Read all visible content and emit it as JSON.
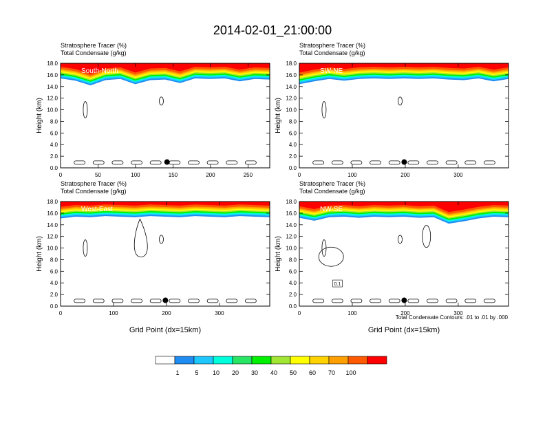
{
  "main_title": "2014-02-01_21:00:00",
  "contour_note": "Total Condensate Contours: .01 to .01 by .000",
  "colorbar": {
    "colors": [
      "#ffffff",
      "#1e8cf0",
      "#1ec8ff",
      "#00ffdc",
      "#28e664",
      "#00f000",
      "#a0e632",
      "#ffff00",
      "#ffd200",
      "#ffa000",
      "#ff5a00",
      "#ff0000"
    ],
    "labels": [
      "1",
      "5",
      "10",
      "20",
      "30",
      "40",
      "50",
      "60",
      "70",
      "100"
    ]
  },
  "chart_data": [
    {
      "type": "heatmap",
      "line1": "Stratosphere Tracer   (%)",
      "line2": "Total Condensate   (g/kg)",
      "inset_label": "South-North",
      "ylabel": "Height (km)",
      "xlabel": "",
      "xlim": [
        0,
        279
      ],
      "ylim": [
        0,
        18
      ],
      "xticks": [
        0,
        50,
        100,
        150,
        200,
        250
      ],
      "yticks": [
        "0.0",
        "2.0",
        "4.0",
        "6.0",
        "8.0",
        "10.0",
        "12.0",
        "14.0",
        "16.0",
        "18.0"
      ],
      "tracer_band_bottom_km": [
        15.4,
        15.0,
        14.2,
        15.1,
        15.3,
        14.4,
        15.1,
        15.2,
        14.6,
        15.4,
        15.3,
        15.4,
        14.9,
        15.3,
        15.2
      ],
      "marker": {
        "x": 142,
        "y": 1.0
      }
    },
    {
      "type": "heatmap",
      "line1": "Stratosphere Tracer   (%)",
      "line2": "Total Condensate   (g/kg)",
      "inset_label": "SW-NE",
      "ylabel": "Height (km)",
      "xlabel": "",
      "xlim": [
        0,
        395
      ],
      "ylim": [
        0,
        18
      ],
      "xticks": [
        0,
        100,
        200,
        300
      ],
      "yticks": [
        "0.0",
        "2.0",
        "4.0",
        "6.0",
        "8.0",
        "10.0",
        "12.0",
        "14.0",
        "16.0",
        "18.0"
      ],
      "tracer_band_bottom_km": [
        14.4,
        14.9,
        15.3,
        15.0,
        15.3,
        15.4,
        15.3,
        15.4,
        15.3,
        15.4,
        15.2,
        15.1,
        15.4,
        14.9,
        15.3
      ],
      "marker": {
        "x": 198,
        "y": 1.0
      }
    },
    {
      "type": "heatmap",
      "line1": "Stratosphere Tracer   (%)",
      "line2": "Total Condensate   (g/kg)",
      "inset_label": "West-East",
      "ylabel": "Height (km)",
      "xlabel": "Grid Point (dx=15km)",
      "xlim": [
        0,
        395
      ],
      "ylim": [
        0,
        18
      ],
      "xticks": [
        0,
        100,
        200,
        300
      ],
      "yticks": [
        "0.0",
        "2.0",
        "4.0",
        "6.0",
        "8.0",
        "10.0",
        "12.0",
        "14.0",
        "16.0",
        "18.0"
      ],
      "tracer_band_bottom_km": [
        15.1,
        15.4,
        15.3,
        15.5,
        15.4,
        15.3,
        15.5,
        15.4,
        15.3,
        15.5,
        15.4,
        15.3,
        15.5,
        15.4,
        15.3
      ],
      "marker": {
        "x": 198,
        "y": 1.0
      }
    },
    {
      "type": "heatmap",
      "line1": "Stratosphere Tracer   (%)",
      "line2": "Total Condensate   (g/kg)",
      "inset_label": "NW-SE",
      "ylabel": "Height (km)",
      "xlabel": "Grid Point (dx=15km)",
      "xlim": [
        0,
        395
      ],
      "ylim": [
        0,
        18
      ],
      "xticks": [
        0,
        100,
        200,
        300
      ],
      "yticks": [
        "0.0",
        "2.0",
        "4.0",
        "6.0",
        "8.0",
        "10.0",
        "12.0",
        "14.0",
        "16.0",
        "18.0"
      ],
      "tracer_band_bottom_km": [
        15.2,
        14.7,
        15.3,
        15.4,
        15.2,
        15.4,
        15.3,
        15.4,
        15.2,
        15.3,
        14.2,
        14.6,
        15.1,
        15.4,
        15.3
      ],
      "marker": {
        "x": 198,
        "y": 1.0
      },
      "contour_label": "0.1"
    }
  ]
}
